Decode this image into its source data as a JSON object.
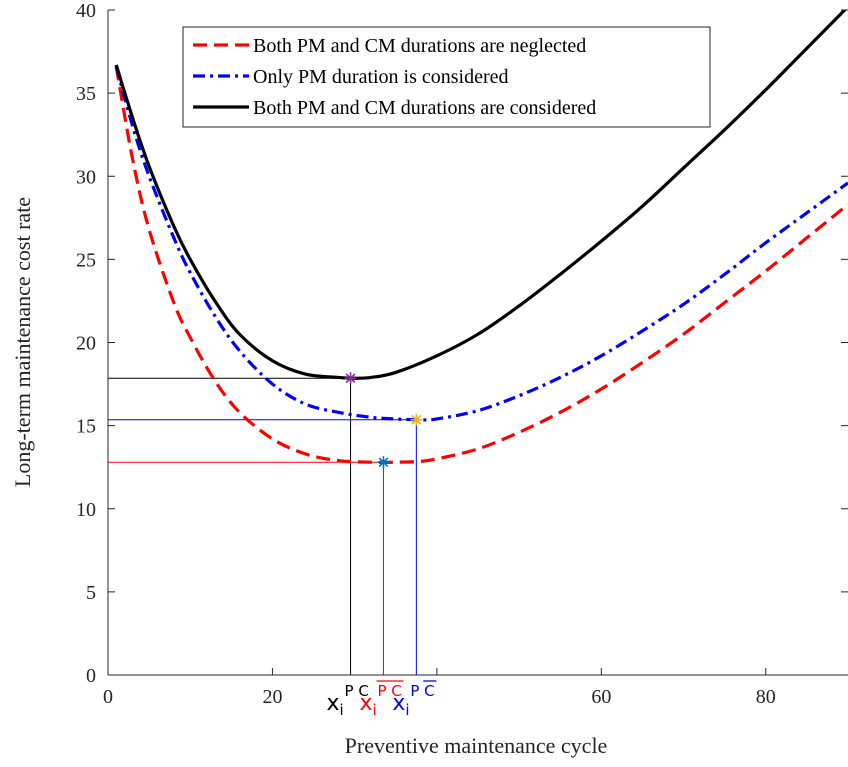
{
  "chart_data": {
    "type": "line",
    "xlabel": "Preventive maintenance cycle",
    "ylabel": "Long-term maintenance cost rate",
    "xlim": [
      0,
      90
    ],
    "ylim": [
      0,
      40
    ],
    "xticks": [
      0,
      20,
      40,
      60,
      80
    ],
    "xtick_labels": [
      "0",
      "20",
      "",
      "60",
      "80"
    ],
    "yticks": [
      0,
      5,
      10,
      15,
      20,
      25,
      30,
      35,
      40
    ],
    "grid": false,
    "legend_position": "top-center",
    "series": [
      {
        "name": "Both PM and CM durations are neglected",
        "color": "#ff0000",
        "dash": "dashed",
        "x": [
          1,
          3,
          5,
          8,
          10,
          13,
          16,
          20,
          24,
          28,
          32,
          35,
          38,
          40,
          45,
          50,
          55,
          60,
          65,
          70,
          75,
          80,
          85,
          90
        ],
        "y": [
          36.6,
          31.0,
          26.8,
          22.4,
          20.3,
          17.7,
          15.8,
          14.2,
          13.3,
          12.9,
          12.8,
          12.8,
          12.85,
          13.0,
          13.6,
          14.6,
          15.8,
          17.2,
          18.8,
          20.5,
          22.4,
          24.3,
          26.3,
          28.3
        ]
      },
      {
        "name": "Only PM duration is considered",
        "color": "#0000ff",
        "dash": "dashdot",
        "x": [
          1,
          3,
          5,
          8,
          10,
          13,
          16,
          20,
          24,
          28,
          32,
          35,
          38,
          40,
          45,
          50,
          55,
          60,
          65,
          70,
          75,
          80,
          85,
          90
        ],
        "y": [
          36.6,
          33.0,
          30.0,
          26.3,
          24.2,
          21.6,
          19.5,
          17.5,
          16.3,
          15.8,
          15.5,
          15.4,
          15.35,
          15.4,
          15.9,
          16.8,
          17.9,
          19.2,
          20.7,
          22.3,
          24.1,
          26.0,
          27.8,
          29.6
        ]
      },
      {
        "name": "Both PM and CM durations are considered",
        "color": "#000000",
        "dash": "solid",
        "x": [
          1,
          3,
          5,
          8,
          10,
          13,
          16,
          20,
          24,
          28,
          30,
          32,
          35,
          40,
          45,
          50,
          55,
          60,
          65,
          70,
          75,
          80,
          85,
          90
        ],
        "y": [
          36.7,
          33.5,
          30.6,
          27.0,
          25.0,
          22.5,
          20.5,
          18.9,
          18.1,
          17.9,
          17.85,
          17.9,
          18.2,
          19.2,
          20.5,
          22.2,
          24.1,
          26.1,
          28.2,
          30.5,
          32.8,
          35.2,
          37.7,
          40.2
        ]
      }
    ],
    "optima": [
      {
        "label": "x",
        "sub": "i",
        "sup": "P C",
        "overline": false,
        "x": 29.5,
        "y": 17.85,
        "color": "#000000",
        "marker_color": "#7e2f8e"
      },
      {
        "label": "x",
        "sub": "i",
        "sup": "P C",
        "overline": true,
        "x": 33.5,
        "y": 12.8,
        "color": "#ff0000",
        "marker_color": "#0072bd"
      },
      {
        "label": "x",
        "sub": "i",
        "sup": "P C",
        "overline": "C",
        "x": 37.5,
        "y": 15.35,
        "color": "#0000ff",
        "marker_color": "#edb120"
      }
    ]
  }
}
